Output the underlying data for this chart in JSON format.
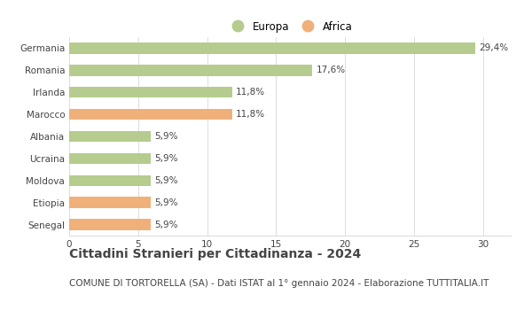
{
  "categories": [
    "Germania",
    "Romania",
    "Irlanda",
    "Marocco",
    "Albania",
    "Ucraina",
    "Moldova",
    "Etiopia",
    "Senegal"
  ],
  "values": [
    29.4,
    17.6,
    11.8,
    11.8,
    5.9,
    5.9,
    5.9,
    5.9,
    5.9
  ],
  "labels": [
    "29,4%",
    "17,6%",
    "11,8%",
    "11,8%",
    "5,9%",
    "5,9%",
    "5,9%",
    "5,9%",
    "5,9%"
  ],
  "colors": [
    "#b5cc8e",
    "#b5cc8e",
    "#b5cc8e",
    "#f0b07a",
    "#b5cc8e",
    "#b5cc8e",
    "#b5cc8e",
    "#f0b07a",
    "#f0b07a"
  ],
  "legend": [
    {
      "label": "Europa",
      "color": "#b5cc8e"
    },
    {
      "label": "Africa",
      "color": "#f0b07a"
    }
  ],
  "xlim": [
    0,
    32
  ],
  "xticks": [
    0,
    5,
    10,
    15,
    20,
    25,
    30
  ],
  "title": "Cittadini Stranieri per Cittadinanza - 2024",
  "subtitle": "COMUNE DI TORTORELLA (SA) - Dati ISTAT al 1° gennaio 2024 - Elaborazione TUTTITALIA.IT",
  "title_fontsize": 10,
  "subtitle_fontsize": 7.5,
  "label_fontsize": 7.5,
  "tick_fontsize": 7.5,
  "legend_fontsize": 8.5,
  "bar_height": 0.5,
  "background_color": "#ffffff",
  "grid_color": "#dddddd",
  "text_color": "#444444"
}
